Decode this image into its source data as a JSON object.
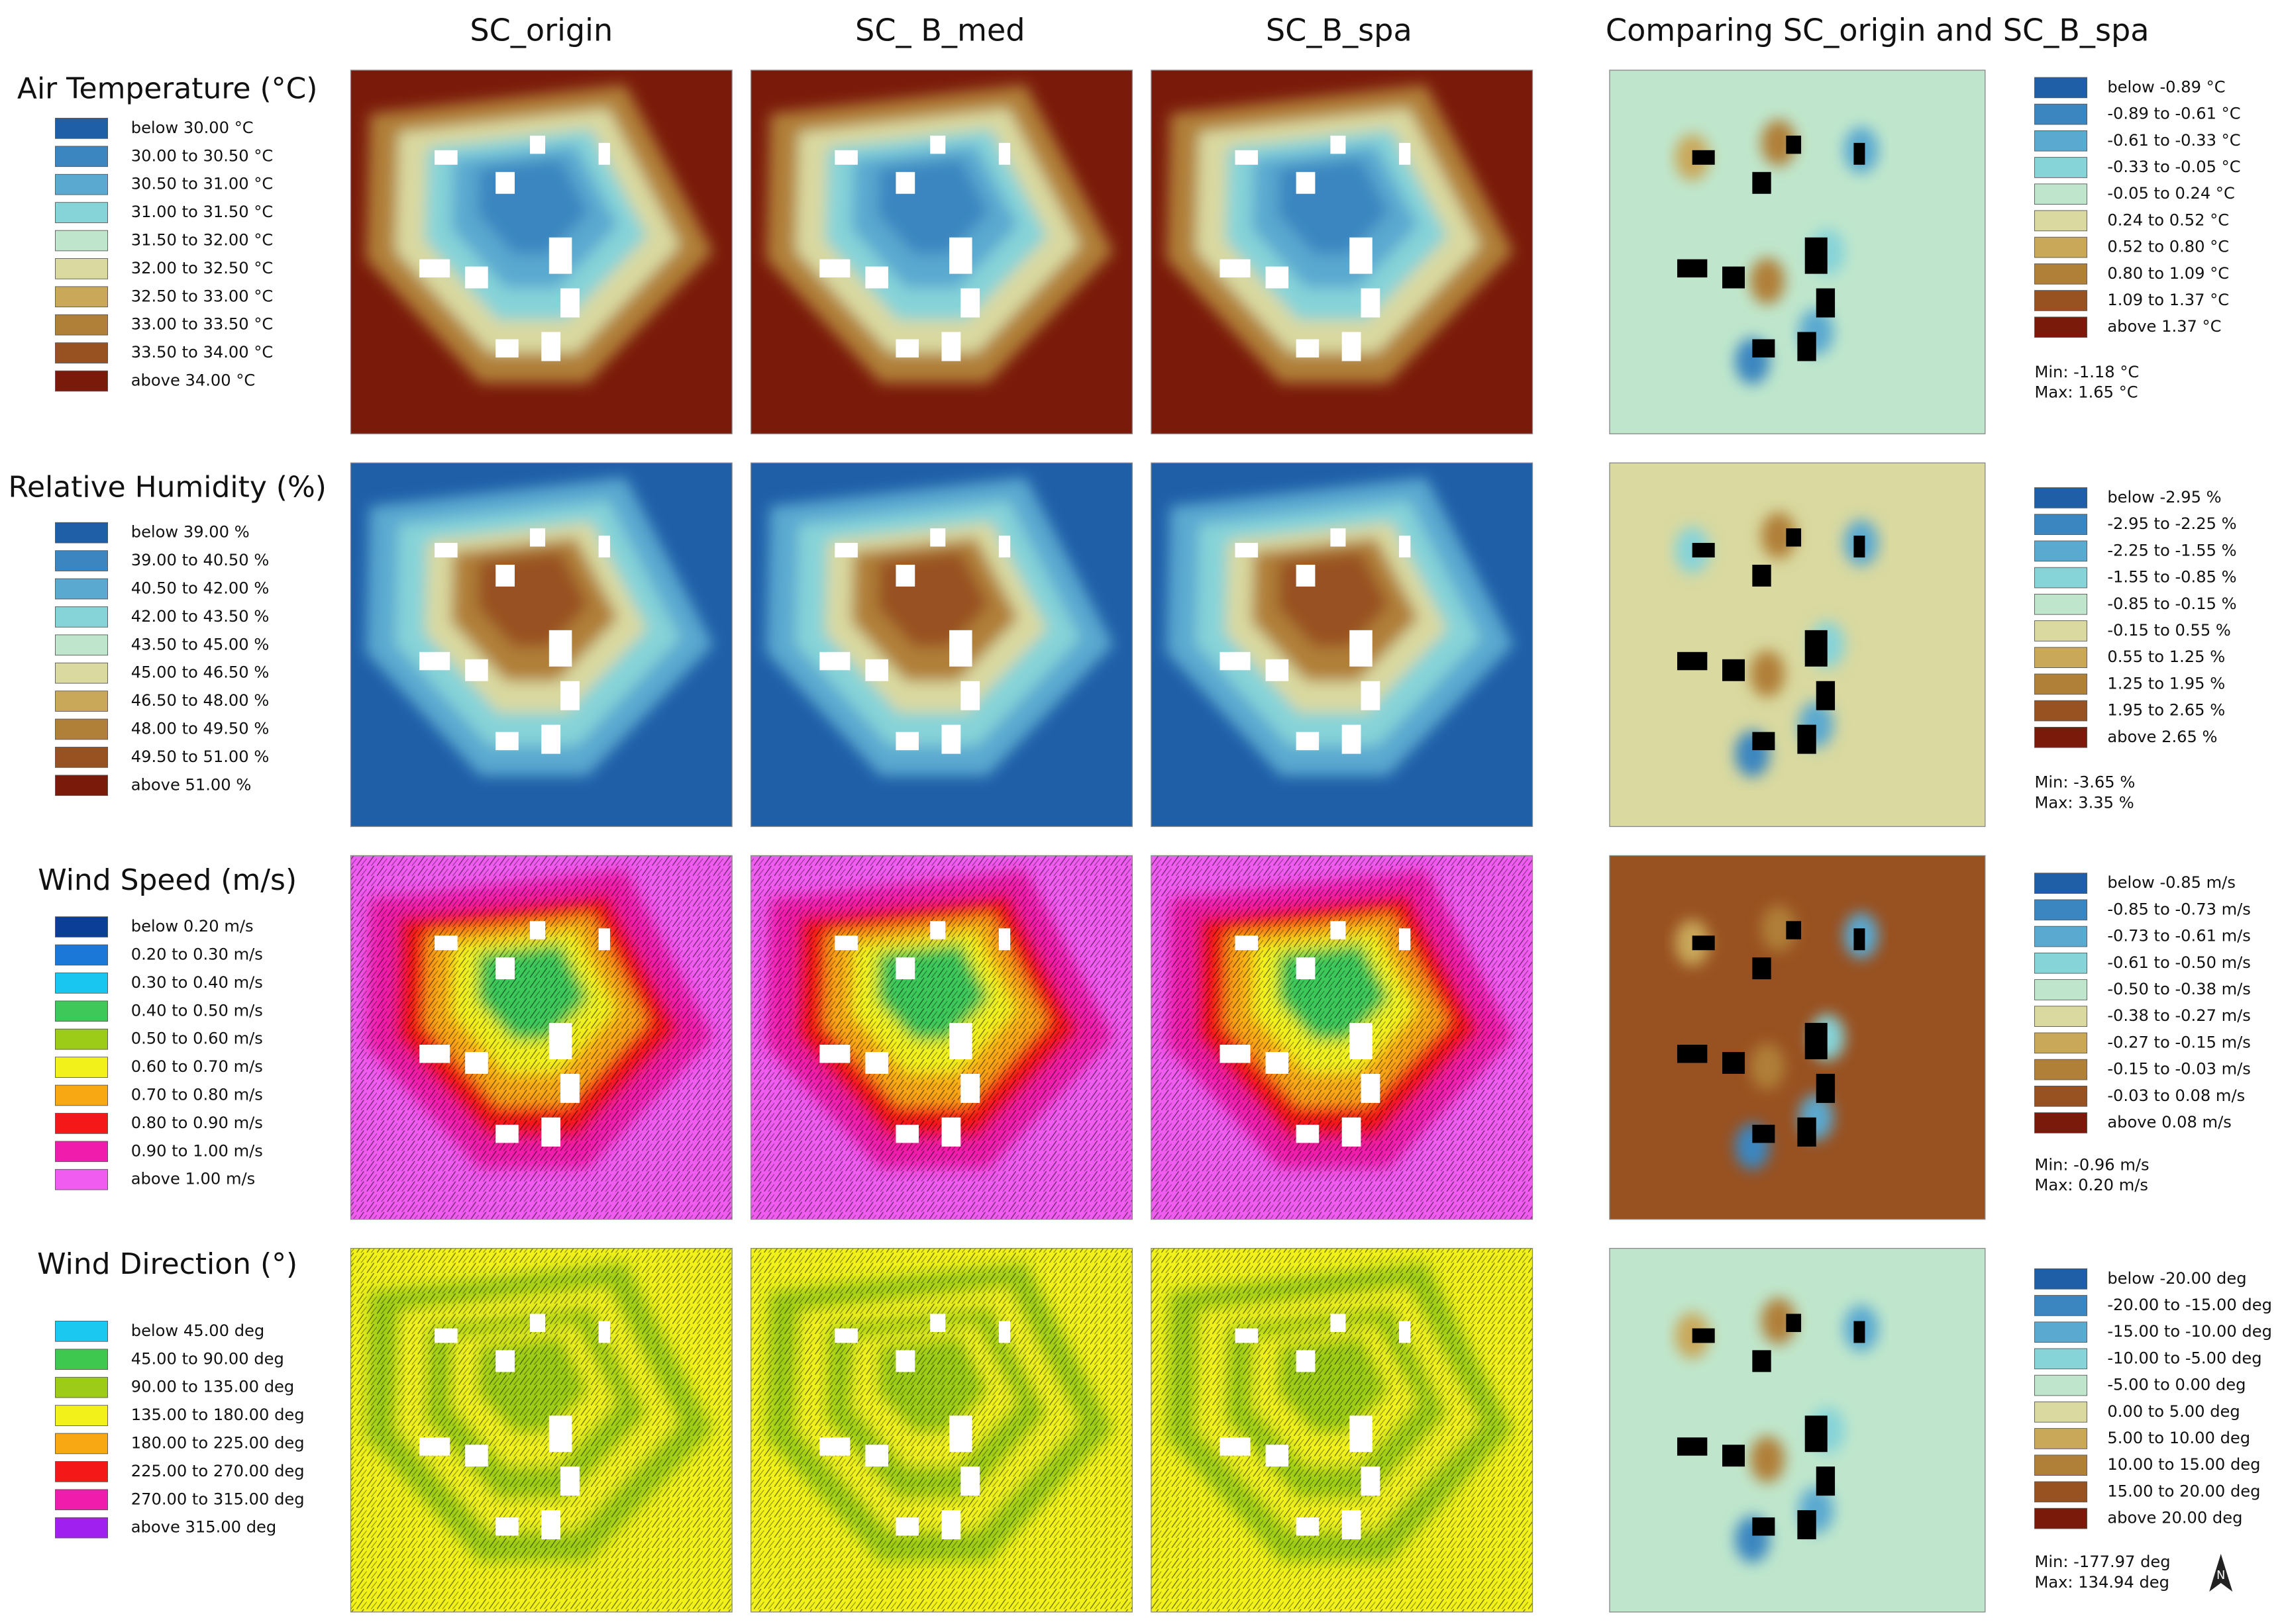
{
  "columns": [
    "SC_origin",
    "SC_ B_med",
    "SC_B_spa",
    "Comparing SC_origin and SC_B_spa"
  ],
  "rows": [
    {
      "title": "Air Temperature (°C)",
      "legend": [
        {
          "label": "below 30.00 °C",
          "color": "#1f5fa8"
        },
        {
          "label": "30.00 to 30.50 °C",
          "color": "#3b86c0"
        },
        {
          "label": "30.50 to 31.00 °C",
          "color": "#5aa9d0"
        },
        {
          "label": "31.00 to 31.50 °C",
          "color": "#86d3d8"
        },
        {
          "label": "31.50 to 32.00 °C",
          "color": "#bfe6cc"
        },
        {
          "label": "32.00 to 32.50 °C",
          "color": "#d9d9a0"
        },
        {
          "label": "32.50 to 33.00 °C",
          "color": "#c9a85a"
        },
        {
          "label": "33.00 to 33.50 °C",
          "color": "#b07f38"
        },
        {
          "label": "33.50 to 34.00 °C",
          "color": "#985121"
        },
        {
          "label": "above 34.00 °C",
          "color": "#7a1a0a"
        }
      ],
      "diff_legend": [
        {
          "label": "below -0.89 °C",
          "color": "#1f5fa8"
        },
        {
          "label": "-0.89 to -0.61 °C",
          "color": "#3b86c0"
        },
        {
          "label": "-0.61 to -0.33 °C",
          "color": "#5aa9d0"
        },
        {
          "label": "-0.33 to -0.05 °C",
          "color": "#86d3d8"
        },
        {
          "label": "-0.05 to 0.24 °C",
          "color": "#bfe6cc"
        },
        {
          "label": "0.24 to 0.52 °C",
          "color": "#d9d9a0"
        },
        {
          "label": "0.52 to 0.80 °C",
          "color": "#c9a85a"
        },
        {
          "label": "0.80 to 1.09 °C",
          "color": "#b07f38"
        },
        {
          "label": "1.09 to 1.37 °C",
          "color": "#985121"
        },
        {
          "label": "above 1.37 °C",
          "color": "#7a1a0a"
        }
      ],
      "min": "Min: -1.18 °C",
      "max": "Max: 1.65 °C"
    },
    {
      "title": "Relative Humidity (%)",
      "legend": [
        {
          "label": "below 39.00 %",
          "color": "#1f5fa8"
        },
        {
          "label": "39.00 to 40.50 %",
          "color": "#3b86c0"
        },
        {
          "label": "40.50 to 42.00 %",
          "color": "#5aa9d0"
        },
        {
          "label": "42.00 to 43.50 %",
          "color": "#86d3d8"
        },
        {
          "label": "43.50 to 45.00 %",
          "color": "#bfe6cc"
        },
        {
          "label": "45.00 to 46.50 %",
          "color": "#d9d9a0"
        },
        {
          "label": "46.50 to 48.00 %",
          "color": "#c9a85a"
        },
        {
          "label": "48.00 to 49.50 %",
          "color": "#b07f38"
        },
        {
          "label": "49.50 to 51.00 %",
          "color": "#985121"
        },
        {
          "label": "above 51.00 %",
          "color": "#7a1a0a"
        }
      ],
      "diff_legend": [
        {
          "label": "below -2.95 %",
          "color": "#1f5fa8"
        },
        {
          "label": "-2.95 to -2.25 %",
          "color": "#3b86c0"
        },
        {
          "label": "-2.25 to -1.55 %",
          "color": "#5aa9d0"
        },
        {
          "label": "-1.55 to -0.85 %",
          "color": "#86d3d8"
        },
        {
          "label": "-0.85 to -0.15 %",
          "color": "#bfe6cc"
        },
        {
          "label": "-0.15 to 0.55 %",
          "color": "#d9d9a0"
        },
        {
          "label": "0.55 to 1.25 %",
          "color": "#c9a85a"
        },
        {
          "label": "1.25 to 1.95 %",
          "color": "#b07f38"
        },
        {
          "label": "1.95 to 2.65 %",
          "color": "#985121"
        },
        {
          "label": "above 2.65 %",
          "color": "#7a1a0a"
        }
      ],
      "min": "Min: -3.65 %",
      "max": "Max: 3.35 %"
    },
    {
      "title": "Wind Speed (m/s)",
      "legend": [
        {
          "label": "below 0.20 m/s",
          "color": "#0b3e96"
        },
        {
          "label": "0.20 to 0.30 m/s",
          "color": "#1b78d8"
        },
        {
          "label": "0.30 to 0.40 m/s",
          "color": "#19c6f0"
        },
        {
          "label": "0.40 to 0.50 m/s",
          "color": "#3ec85a"
        },
        {
          "label": "0.50 to 0.60 m/s",
          "color": "#9ccc18"
        },
        {
          "label": "0.60 to 0.70 m/s",
          "color": "#f2f21a"
        },
        {
          "label": "0.70 to 0.80 m/s",
          "color": "#f8a812"
        },
        {
          "label": "0.80 to 0.90 m/s",
          "color": "#f41818"
        },
        {
          "label": "0.90 to 1.00 m/s",
          "color": "#f01cac"
        },
        {
          "label": "above 1.00 m/s",
          "color": "#f05cf0"
        }
      ],
      "diff_legend": [
        {
          "label": "below -0.85 m/s",
          "color": "#1f5fa8"
        },
        {
          "label": "-0.85 to -0.73 m/s",
          "color": "#3b86c0"
        },
        {
          "label": "-0.73 to -0.61 m/s",
          "color": "#5aa9d0"
        },
        {
          "label": "-0.61 to -0.50 m/s",
          "color": "#86d3d8"
        },
        {
          "label": "-0.50 to -0.38 m/s",
          "color": "#bfe6cc"
        },
        {
          "label": "-0.38 to -0.27 m/s",
          "color": "#d9d9a0"
        },
        {
          "label": "-0.27 to -0.15 m/s",
          "color": "#c9a85a"
        },
        {
          "label": "-0.15 to -0.03 m/s",
          "color": "#b07f38"
        },
        {
          "label": "-0.03 to 0.08 m/s",
          "color": "#985121"
        },
        {
          "label": "above 0.08 m/s",
          "color": "#7a1a0a"
        }
      ],
      "min": "Min: -0.96 m/s",
      "max": "Max: 0.20 m/s"
    },
    {
      "title": "Wind Direction (°)",
      "legend": [
        {
          "label": "below 45.00 deg",
          "color": "#1ac8f0"
        },
        {
          "label": "45.00 to 90.00 deg",
          "color": "#3ec850"
        },
        {
          "label": "90.00 to 135.00 deg",
          "color": "#9ccc18"
        },
        {
          "label": "135.00 to 180.00 deg",
          "color": "#f2f21a"
        },
        {
          "label": "180.00 to 225.00 deg",
          "color": "#f8a812"
        },
        {
          "label": "225.00 to 270.00 deg",
          "color": "#f41818"
        },
        {
          "label": "270.00 to 315.00 deg",
          "color": "#f01cac"
        },
        {
          "label": "above 315.00 deg",
          "color": "#a020f0"
        }
      ],
      "diff_legend": [
        {
          "label": "below -20.00 deg",
          "color": "#1f5fa8"
        },
        {
          "label": "-20.00 to -15.00 deg",
          "color": "#3b86c0"
        },
        {
          "label": "-15.00 to -10.00 deg",
          "color": "#5aa9d0"
        },
        {
          "label": "-10.00 to -5.00 deg",
          "color": "#86d3d8"
        },
        {
          "label": "-5.00 to 0.00 deg",
          "color": "#bfe6cc"
        },
        {
          "label": "0.00 to 5.00 deg",
          "color": "#d9d9a0"
        },
        {
          "label": "5.00 to 10.00 deg",
          "color": "#c9a85a"
        },
        {
          "label": "10.00 to 15.00 deg",
          "color": "#b07f38"
        },
        {
          "label": "15.00 to 20.00 deg",
          "color": "#985121"
        },
        {
          "label": "above 20.00 deg",
          "color": "#7a1a0a"
        }
      ],
      "min": "Min: -177.97 deg",
      "max": "Max: 134.94 deg"
    }
  ]
}
